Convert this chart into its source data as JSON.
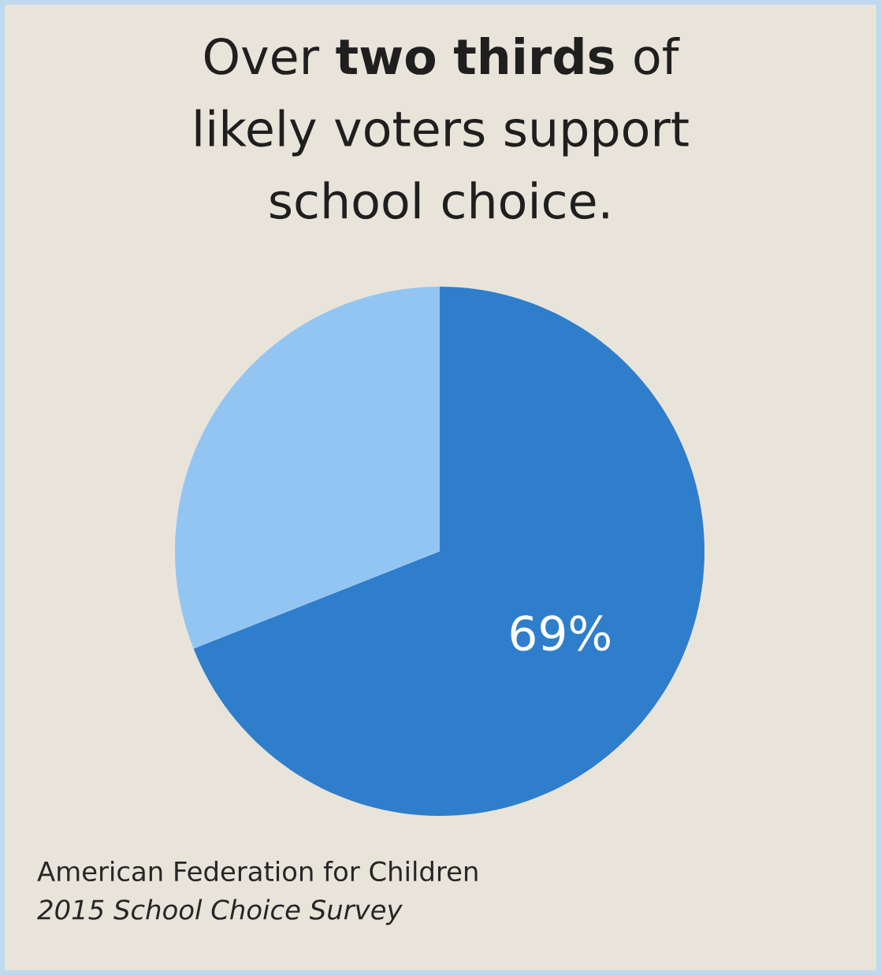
{
  "chart_data": {
    "type": "pie",
    "title": "Over **two thirds** of likely voters support school choice.",
    "categories": [
      null,
      null
    ],
    "values": [
      69,
      31
    ],
    "colors": [
      "#2f7ecb",
      "#92c5f2"
    ],
    "value_labels": [
      "69%",
      null
    ],
    "annotations": [
      "American Federation for Children",
      "*2015 School Choice Survey*"
    ]
  }
}
